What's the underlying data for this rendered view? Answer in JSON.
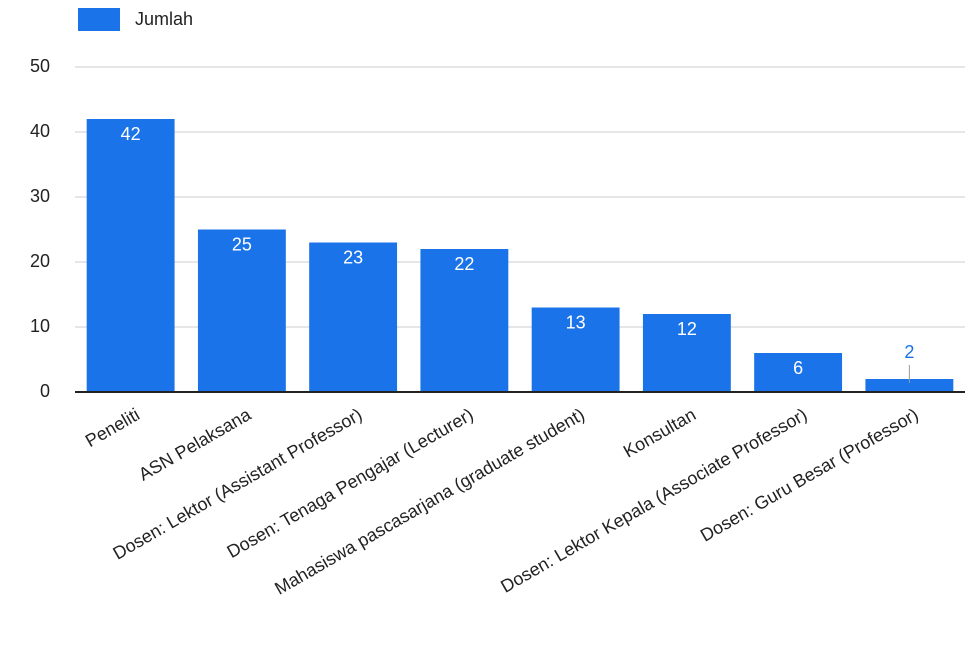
{
  "chart_data": {
    "type": "bar",
    "categories": [
      "Peneliti",
      "ASN Pelaksana",
      "Dosen: Lektor (Assistant Professor)",
      "Dosen: Tenaga Pengajar (Lecturer)",
      "Mahasiswa pascasarjana (graduate student)",
      "Konsultan",
      "Dosen: Lektor Kepala (Associate Professor)",
      "Dosen: Guru Besar (Professor)"
    ],
    "series": [
      {
        "name": "Jumlah",
        "color": "#1a73e8",
        "values": [
          42,
          25,
          23,
          22,
          13,
          12,
          6,
          2
        ]
      }
    ],
    "ylim": [
      0,
      50
    ],
    "yticks": [
      0,
      10,
      20,
      30,
      40,
      50
    ],
    "grid": true,
    "legend": "top-left"
  }
}
